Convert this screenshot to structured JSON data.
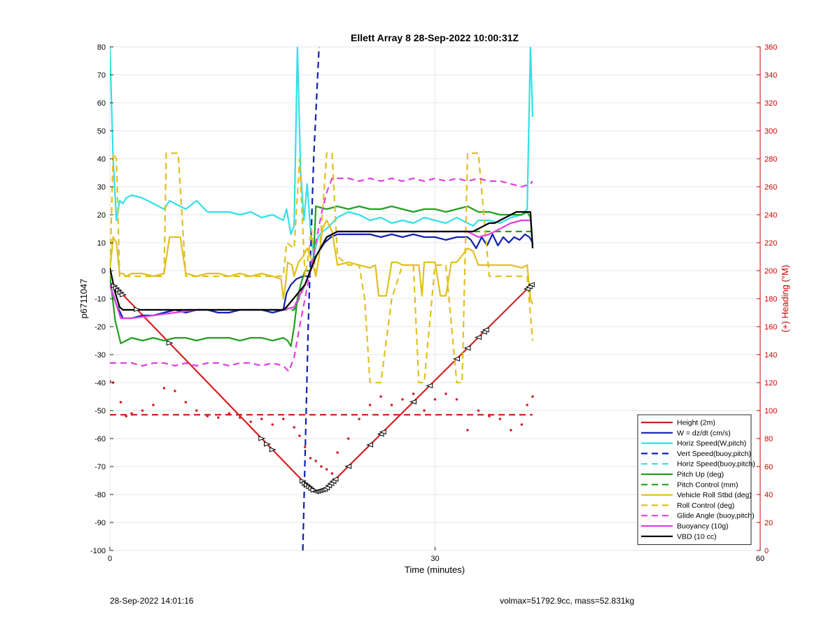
{
  "chart_data": {
    "type": "line",
    "title": "Ellett Array 8 28-Sep-2022 10:00:31Z",
    "xlabel": "Time (minutes)",
    "ylabel": "p6711047",
    "ylabel_right": "(+) Heading (°M)",
    "xlim": [
      0,
      60
    ],
    "ylim": [
      -100,
      80
    ],
    "ylim_right": [
      0,
      360
    ],
    "xticks": [
      "0",
      "30",
      "60"
    ],
    "yticks": [
      "80",
      "70",
      "60",
      "50",
      "40",
      "30",
      "20",
      "10",
      "0",
      "-10",
      "-20",
      "-30",
      "-40",
      "-50",
      "-60",
      "-70",
      "-80",
      "-90",
      "-100"
    ],
    "yticks_right": [
      "360",
      "340",
      "320",
      "300",
      "280",
      "260",
      "240",
      "220",
      "200",
      "180",
      "160",
      "140",
      "120",
      "100",
      "80",
      "60",
      "40",
      "20",
      "0"
    ],
    "grid": true,
    "legend_position": "bottom-right",
    "colors": {
      "red": "#d62020",
      "blue": "#1020b0",
      "cyan": "#33e0e8",
      "green": "#20a020",
      "yellow": "#e0c020",
      "magenta": "#e040e0",
      "black": "#000000",
      "axis_right": "#cc0000"
    },
    "series": [
      {
        "name": "Height (2m)",
        "color": "red",
        "dash": false,
        "x": [
          0.3,
          18.0,
          19.0,
          19.9,
          38.9
        ],
        "y": [
          -5,
          -76,
          -79,
          -78,
          -5
        ]
      },
      {
        "name": "W = dz/dt (cm/s)",
        "color": "blue",
        "dash": false,
        "x": [
          0,
          0.6,
          1.2,
          2,
          3,
          4,
          5,
          6,
          7,
          8,
          9,
          10,
          11,
          12,
          13,
          14,
          15,
          16,
          16.3,
          16.7,
          17.2,
          17.8,
          18.3,
          18.8,
          19.3,
          19.8,
          20.4,
          21,
          22,
          23,
          24,
          25,
          26,
          27,
          28,
          29,
          30,
          31,
          32,
          33,
          33.3,
          33.8,
          34.3,
          34.8,
          35.3,
          35.8,
          36.3,
          36.8,
          37.3,
          37.8,
          38.3,
          38.7,
          39
        ],
        "y": [
          -5,
          -12,
          -17,
          -17,
          -16,
          -16,
          -15,
          -14,
          -15,
          -14,
          -14,
          -15,
          -15,
          -14,
          -14,
          -14,
          -15,
          -14,
          -8,
          -5,
          -3,
          -2,
          -2,
          4,
          7,
          10,
          12,
          13,
          13,
          13,
          13,
          12,
          13,
          12,
          13,
          12,
          12,
          11,
          12,
          12,
          11,
          8,
          12,
          9,
          13,
          9,
          12,
          10,
          12,
          11,
          13,
          12,
          10
        ]
      },
      {
        "name": "Horiz Speed(W,pitch)",
        "color": "cyan",
        "dash": false,
        "x": [
          0,
          0.3,
          0.6,
          0.9,
          1.2,
          1.5,
          2,
          3,
          4,
          5,
          5.5,
          6,
          7,
          8,
          9,
          10,
          11,
          12,
          13,
          14,
          15,
          15.5,
          16,
          16.3,
          16.7,
          17,
          17.3,
          17.6,
          17.9,
          18.2,
          18.5,
          18.8,
          19.2,
          19.6,
          20,
          21,
          22,
          23,
          24,
          25,
          26,
          27,
          28,
          29,
          30,
          31,
          32,
          33,
          33.5,
          34,
          35,
          36,
          37,
          38,
          38.5,
          38.8,
          39
        ],
        "y": [
          80,
          40,
          18,
          25,
          24,
          26,
          27,
          26,
          24,
          22,
          25,
          24,
          22,
          25,
          21,
          21,
          21,
          20,
          21,
          19,
          20,
          19,
          18,
          22,
          13,
          16,
          80,
          35,
          18,
          31,
          15,
          5,
          12,
          14,
          15,
          19,
          21,
          20,
          18,
          19,
          17,
          18,
          17,
          19,
          18,
          17,
          19,
          17,
          16,
          18,
          18,
          17,
          19,
          20,
          22,
          80,
          55
        ]
      },
      {
        "name": "Vert Speed(buoy,pitch)",
        "color": "blue",
        "dash": true,
        "x": [
          17.8,
          18.3,
          18.8,
          19.3
        ],
        "y": [
          -100,
          -20,
          40,
          80
        ]
      },
      {
        "name": "Horiz Speed(buoy,pitch)",
        "color": "cyan",
        "dash": true,
        "x": [],
        "y": []
      },
      {
        "name": "Pitch Up (deg)",
        "color": "green",
        "dash": false,
        "x": [
          0,
          0.5,
          1,
          1.5,
          2,
          3,
          4,
          5,
          6,
          7,
          8,
          9,
          10,
          11,
          12,
          13,
          14,
          15,
          16,
          16.4,
          16.7,
          17,
          17.3,
          17.6,
          18,
          18.5,
          18.8,
          19,
          20,
          21,
          22,
          23,
          24,
          25,
          26,
          27,
          28,
          29,
          30,
          31,
          32,
          33,
          34,
          35,
          36,
          37,
          38,
          38.5,
          38.8,
          39
        ],
        "y": [
          -2,
          -18,
          -26,
          -25,
          -24,
          -25,
          -24,
          -25,
          -24,
          -24,
          -25,
          -24,
          -24,
          -24,
          -25,
          -24,
          -24,
          -25,
          -24,
          -25,
          -27,
          -20,
          -10,
          -5,
          0,
          0,
          5,
          23,
          22,
          23,
          22,
          23,
          22,
          22,
          23,
          22,
          21,
          22,
          22,
          21,
          22,
          23,
          21,
          21,
          20,
          20,
          20,
          21,
          19,
          9
        ]
      },
      {
        "name": "Pitch Control (mm)",
        "color": "green",
        "dash": true,
        "x": [
          0,
          0.4,
          0.8,
          5,
          10,
          16,
          17,
          18,
          19,
          20,
          21,
          30,
          32,
          33,
          34,
          38,
          39
        ],
        "y": [
          -5,
          -10,
          -14,
          -14,
          -14,
          -14,
          -14,
          -5,
          5,
          12,
          14,
          14,
          14,
          14,
          14,
          14,
          14
        ]
      },
      {
        "name": "Vehicle Roll Stbd (deg)",
        "color": "yellow",
        "dash": false,
        "x": [
          0,
          0.3,
          0.6,
          0.9,
          1.2,
          1.5,
          2,
          3,
          4,
          5,
          5.5,
          6,
          6.5,
          7,
          8,
          9,
          10,
          11,
          12,
          13,
          14,
          15,
          15.8,
          16,
          16.2,
          16.4,
          16.8,
          17,
          17.4,
          17.8,
          18.2,
          18.6,
          19,
          19.3,
          19.6,
          20,
          20.5,
          21,
          22,
          23,
          24,
          24.5,
          24.8,
          25,
          25.5,
          26,
          26.5,
          27,
          28,
          28.5,
          28.8,
          29,
          30,
          30.5,
          31,
          31.5,
          32,
          33,
          33.5,
          34,
          35,
          36,
          37,
          38,
          38.5,
          38.8,
          39
        ],
        "y": [
          0,
          12,
          10,
          -1,
          -1,
          -2,
          -1,
          -1,
          -2,
          -1,
          12,
          12,
          12,
          -1,
          -2,
          -1,
          -1,
          -2,
          -1,
          -2,
          -1,
          -2,
          -3,
          -10,
          -5,
          3,
          2,
          -2,
          3,
          5,
          8,
          4,
          -2,
          5,
          15,
          18,
          14,
          2,
          3,
          2,
          1,
          2,
          -9,
          -9,
          -9,
          3,
          3,
          2,
          2,
          2,
          -9,
          3,
          3,
          -9,
          -9,
          3,
          3,
          8,
          7,
          2,
          2,
          2,
          2,
          1,
          2,
          -10,
          -12
        ]
      },
      {
        "name": "Roll Control (deg)",
        "color": "yellow",
        "dash": true,
        "x": [
          0,
          0.3,
          0.6,
          0.9,
          1.2,
          1.5,
          2,
          3,
          4,
          5,
          5.2,
          6,
          6.3,
          7,
          10,
          15,
          16,
          16.3,
          17,
          17.5,
          18,
          18.3,
          18.6,
          19,
          19.3,
          19.6,
          20,
          20.5,
          21,
          22,
          23,
          23.5,
          24,
          25,
          26,
          27,
          28,
          28.5,
          29,
          30,
          31,
          32,
          32.5,
          33,
          34,
          35,
          36,
          37,
          38,
          38.5,
          39
        ],
        "y": [
          -2,
          42,
          40,
          -2,
          -2,
          -2,
          -2,
          -2,
          -2,
          -2,
          42,
          42,
          42,
          -2,
          -2,
          -2,
          -2,
          10,
          8,
          40,
          -2,
          5,
          15,
          -2,
          5,
          20,
          42,
          42,
          5,
          2,
          2,
          -10,
          -40,
          -40,
          -10,
          2,
          2,
          -40,
          -40,
          2,
          2,
          -40,
          -40,
          42,
          42,
          -2,
          -2,
          -2,
          -2,
          -2,
          -25
        ]
      },
      {
        "name": "Glide Angle (buoy,pitch)",
        "color": "magenta",
        "dash": true,
        "x": [
          0,
          1.2,
          2,
          3,
          4,
          5,
          6,
          7,
          8,
          9,
          10,
          11,
          12,
          13,
          14,
          15,
          16,
          16.5,
          17,
          17.5,
          18,
          18.5,
          19,
          19.5,
          20,
          20.5,
          21,
          22,
          23,
          24,
          25,
          26,
          27,
          28,
          29,
          30,
          31,
          32,
          33,
          34,
          35,
          36,
          37,
          38,
          38.8,
          39
        ],
        "y": [
          -33,
          -33,
          -33,
          -34,
          -33,
          -33,
          -34,
          -33,
          -34,
          -33,
          -33,
          -34,
          -33,
          -33,
          -34,
          -33,
          -34,
          -36,
          -31,
          -20,
          -10,
          0,
          10,
          20,
          28,
          33,
          33,
          33,
          32,
          33,
          32,
          33,
          32,
          33,
          32,
          33,
          32,
          33,
          32,
          33,
          32,
          32,
          31,
          30,
          31,
          32
        ]
      },
      {
        "name": "Buoyancy (10g)",
        "color": "magenta",
        "dash": false,
        "x": [
          0,
          1,
          2,
          4,
          6,
          8,
          10,
          12,
          14,
          16,
          17,
          18,
          19,
          20,
          21,
          22,
          25,
          30,
          33,
          34,
          35,
          36,
          37,
          38,
          38.8
        ],
        "y": [
          -5,
          -17,
          -17,
          -16,
          -15,
          -14,
          -14,
          -14,
          -14,
          -14,
          -13,
          -5,
          5,
          12,
          14,
          14,
          14,
          14,
          14,
          12,
          13,
          15,
          17,
          18,
          18
        ]
      },
      {
        "name": "VBD (10 cc)",
        "color": "black",
        "dash": false,
        "x": [
          0,
          0.5,
          0.9,
          1.2,
          2,
          5,
          10,
          15,
          16,
          16.3,
          18,
          19,
          20,
          21,
          30,
          33,
          33.5,
          34,
          34.5,
          35,
          35.5,
          36,
          36.5,
          37,
          37.5,
          38,
          38.5,
          38.8,
          39
        ],
        "y": [
          1,
          -8,
          -13,
          -14,
          -14,
          -14,
          -14,
          -14,
          -14,
          -13,
          -5,
          5,
          12,
          14,
          14,
          14,
          14,
          15,
          16,
          17,
          17,
          18,
          19,
          20,
          21,
          21,
          21,
          21,
          8
        ]
      },
      {
        "name": "",
        "color": "red",
        "dash": true,
        "x": [
          0,
          39
        ],
        "y": [
          -51.5,
          -51.5
        ]
      },
      {
        "name": "",
        "color": "red",
        "dotted": true,
        "axis": "right",
        "x": [
          0,
          0.3,
          1,
          1.5,
          2,
          3,
          4,
          5,
          6,
          7,
          8,
          9,
          10,
          11,
          12,
          13,
          14,
          15,
          16,
          17,
          17.5,
          18,
          18.5,
          19,
          19.5,
          20,
          20.5,
          21,
          22,
          23,
          24,
          25,
          26,
          27,
          28,
          29,
          30,
          31,
          32,
          33,
          34,
          35,
          36,
          37,
          38,
          38.5,
          39
        ],
        "y": [
          121,
          120,
          106,
          96,
          98,
          100,
          104,
          116,
          114,
          106,
          100,
          96,
          95,
          98,
          95,
          92,
          94,
          90,
          94,
          88,
          82,
          74,
          66,
          64,
          60,
          58,
          55,
          70,
          80,
          94,
          104,
          110,
          104,
          108,
          112,
          100,
          108,
          112,
          108,
          86,
          100,
          96,
          94,
          86,
          90,
          104,
          110
        ]
      }
    ]
  },
  "footer": {
    "timestamp": "28-Sep-2022 14:01:16",
    "stats": "volmax=51792.9cc, mass=52.831kg"
  }
}
